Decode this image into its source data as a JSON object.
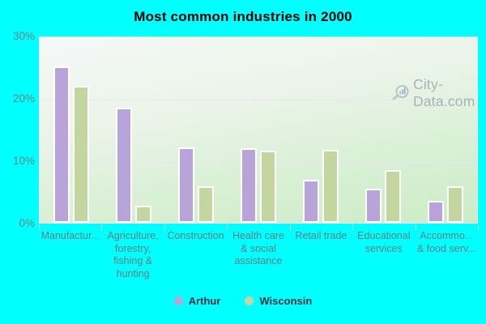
{
  "title": "Most common industries in 2000",
  "watermark": {
    "text": "City-Data.com"
  },
  "legend": {
    "items": [
      {
        "label": "Arthur",
        "color": "#b8a4d8"
      },
      {
        "label": "Wisconsin",
        "color": "#c3d6a0"
      }
    ]
  },
  "colors": {
    "page_background": "#00ffff",
    "arthur_bar": "#b8a4d8",
    "wisconsin_bar": "#c3d6a0",
    "bar_border": "#ffffff",
    "gridline": "#e9e6f0",
    "axis_text": "#618080",
    "ytick_text": "#6c8383",
    "legend_text": "#33333f",
    "watermark_text": "#a3adb4",
    "title_text": "#000000"
  },
  "chart_data": {
    "type": "bar",
    "title": "Most common industries in 2000",
    "categories": [
      "Manufactur...",
      "Agriculture,\nforestry,\nfishing &\nhunting",
      "Construction",
      "Health care\n& social\nassistance",
      "Retail trade",
      "Educational\nservices",
      "Accommo...\n& food serv..."
    ],
    "series": [
      {
        "name": "Arthur",
        "color": "#b8a4d8",
        "values": [
          25.1,
          18.4,
          12.1,
          12.0,
          6.9,
          5.4,
          3.5
        ]
      },
      {
        "name": "Wisconsin",
        "color": "#c3d6a0",
        "values": [
          22.0,
          2.7,
          5.9,
          11.5,
          11.7,
          8.5,
          5.8
        ]
      }
    ],
    "xlabel": "",
    "ylabel": "",
    "ylim": [
      0,
      30
    ],
    "yticks": [
      {
        "value": 0,
        "label": "0%"
      },
      {
        "value": 10,
        "label": "10%"
      },
      {
        "value": 20,
        "label": "20%"
      },
      {
        "value": 30,
        "label": "30%"
      }
    ],
    "grid": true,
    "legend_position": "bottom"
  }
}
